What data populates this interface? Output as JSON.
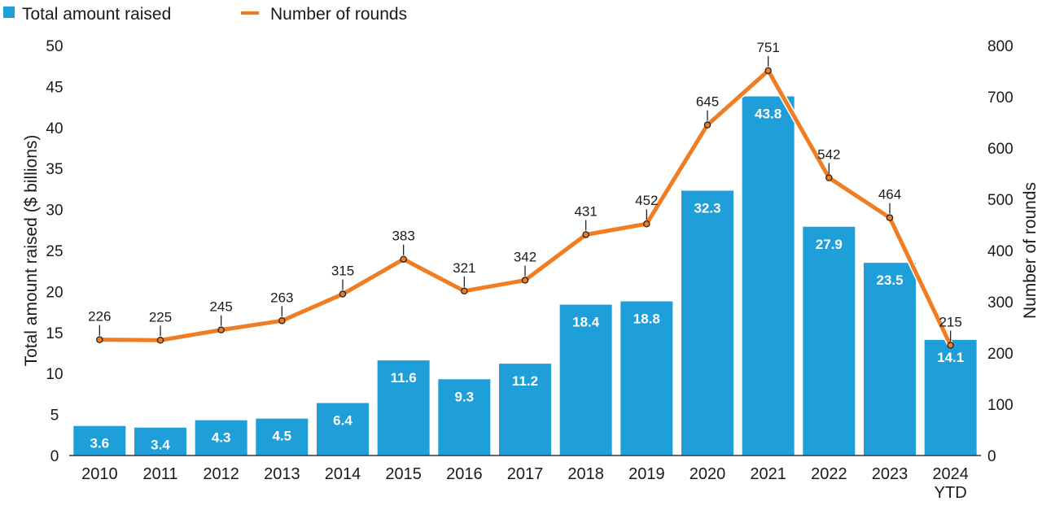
{
  "legend": {
    "bar_label": "Total amount raised",
    "line_label": "Number of rounds"
  },
  "colors": {
    "bar": "#1f9fd9",
    "line": "#f07d22",
    "text": "#1a1a1a",
    "axis": "#333333"
  },
  "chart_data": {
    "type": "bar",
    "categories": [
      "2010",
      "2011",
      "2012",
      "2013",
      "2014",
      "2015",
      "2016",
      "2017",
      "2018",
      "2019",
      "2020",
      "2021",
      "2022",
      "2023",
      "2024 YTD"
    ],
    "category_lines": [
      [
        "2010"
      ],
      [
        "2011"
      ],
      [
        "2012"
      ],
      [
        "2013"
      ],
      [
        "2014"
      ],
      [
        "2015"
      ],
      [
        "2016"
      ],
      [
        "2017"
      ],
      [
        "2018"
      ],
      [
        "2019"
      ],
      [
        "2020"
      ],
      [
        "2021"
      ],
      [
        "2022"
      ],
      [
        "2023"
      ],
      [
        "2024",
        "YTD"
      ]
    ],
    "series": [
      {
        "name": "Total amount raised",
        "type": "bar",
        "axis": "left",
        "values": [
          3.6,
          3.4,
          4.3,
          4.5,
          6.4,
          11.6,
          9.3,
          11.2,
          18.4,
          18.8,
          32.3,
          43.8,
          27.9,
          23.5,
          14.1
        ]
      },
      {
        "name": "Number of rounds",
        "type": "line",
        "axis": "right",
        "values": [
          226,
          225,
          245,
          263,
          315,
          383,
          321,
          342,
          431,
          452,
          645,
          751,
          542,
          464,
          215
        ]
      }
    ],
    "ylabel": "Total amount raised ($ billions)",
    "y2label": "Number of rounds",
    "ylim": [
      0,
      50
    ],
    "y2lim": [
      0,
      800
    ],
    "yticks": [
      0,
      5,
      10,
      15,
      20,
      25,
      30,
      35,
      40,
      45,
      50
    ],
    "y2ticks": [
      0,
      100,
      200,
      300,
      400,
      500,
      600,
      700,
      800
    ],
    "grid": false,
    "legend_position": "top-left"
  }
}
